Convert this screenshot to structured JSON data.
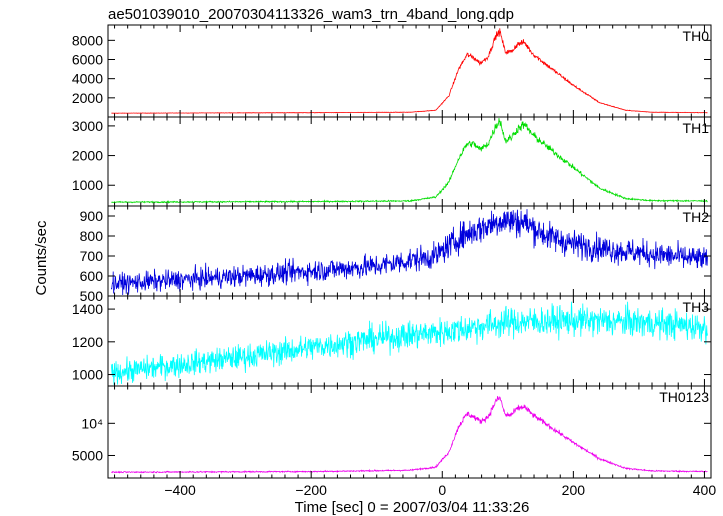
{
  "chart_data": {
    "type": "line",
    "title": "ae501039010_20070304113326_wam3_trn_4band_long.qdp",
    "xlabel": "Time [sec] 0 = 2007/03/04 11:33:26",
    "ylabel": "Counts/sec",
    "xlim": [
      -510,
      410
    ],
    "xticks": [
      -400,
      -200,
      0,
      200,
      400
    ],
    "panels": [
      {
        "name": "TH0",
        "color": "#ff0000",
        "ylim": [
          0,
          9600
        ],
        "yticks": [
          2000,
          4000,
          6000,
          8000
        ],
        "ytick_labels": [
          "2000",
          "4000",
          "6000",
          "8000"
        ],
        "noise": 0.02,
        "keypoints": [
          [
            -505,
            400
          ],
          [
            -200,
            450
          ],
          [
            -50,
            500
          ],
          [
            -10,
            700
          ],
          [
            10,
            2200
          ],
          [
            25,
            5000
          ],
          [
            38,
            6500
          ],
          [
            48,
            6200
          ],
          [
            58,
            5600
          ],
          [
            70,
            6300
          ],
          [
            82,
            8500
          ],
          [
            88,
            8900
          ],
          [
            96,
            6800
          ],
          [
            105,
            6800
          ],
          [
            115,
            7600
          ],
          [
            125,
            7800
          ],
          [
            138,
            6600
          ],
          [
            160,
            5400
          ],
          [
            200,
            3300
          ],
          [
            240,
            1500
          ],
          [
            280,
            700
          ],
          [
            320,
            500
          ],
          [
            405,
            450
          ]
        ]
      },
      {
        "name": "TH1",
        "color": "#00dd00",
        "ylim": [
          300,
          3300
        ],
        "yticks": [
          1000,
          2000,
          3000
        ],
        "ytick_labels": [
          "1000",
          "2000",
          "3000"
        ],
        "noise": 0.025,
        "keypoints": [
          [
            -505,
            430
          ],
          [
            -200,
            450
          ],
          [
            -50,
            470
          ],
          [
            -10,
            600
          ],
          [
            10,
            1100
          ],
          [
            25,
            1900
          ],
          [
            38,
            2400
          ],
          [
            48,
            2400
          ],
          [
            58,
            2200
          ],
          [
            70,
            2400
          ],
          [
            82,
            3000
          ],
          [
            88,
            3200
          ],
          [
            96,
            2500
          ],
          [
            105,
            2600
          ],
          [
            115,
            2900
          ],
          [
            125,
            3050
          ],
          [
            138,
            2700
          ],
          [
            160,
            2300
          ],
          [
            200,
            1600
          ],
          [
            240,
            900
          ],
          [
            280,
            550
          ],
          [
            320,
            480
          ],
          [
            405,
            470
          ]
        ]
      },
      {
        "name": "TH2",
        "color": "#0000dd",
        "ylim": [
          500,
          950
        ],
        "yticks": [
          500,
          600,
          700,
          800,
          900
        ],
        "ytick_labels": [
          "500",
          "600",
          "700",
          "800",
          "900"
        ],
        "noise": 0.045,
        "keypoints": [
          [
            -505,
            560
          ],
          [
            -300,
            600
          ],
          [
            -100,
            650
          ],
          [
            -10,
            700
          ],
          [
            30,
            800
          ],
          [
            60,
            840
          ],
          [
            90,
            880
          ],
          [
            125,
            870
          ],
          [
            160,
            800
          ],
          [
            200,
            760
          ],
          [
            260,
            730
          ],
          [
            320,
            710
          ],
          [
            405,
            680
          ]
        ]
      },
      {
        "name": "TH3",
        "color": "#00ffff",
        "ylim": [
          930,
          1480
        ],
        "yticks": [
          1000,
          1200,
          1400
        ],
        "ytick_labels": [
          "1000",
          "1200",
          "1400"
        ],
        "noise": 0.035,
        "keypoints": [
          [
            -505,
            1010
          ],
          [
            -300,
            1110
          ],
          [
            -100,
            1220
          ],
          [
            0,
            1260
          ],
          [
            100,
            1320
          ],
          [
            200,
            1330
          ],
          [
            300,
            1320
          ],
          [
            405,
            1290
          ]
        ]
      },
      {
        "name": "TH0123",
        "color": "#ee00ee",
        "ylim": [
          1500,
          15800
        ],
        "yticks": [
          5000,
          10000
        ],
        "ytick_labels": [
          "5000",
          "10⁴"
        ],
        "noise": 0.02,
        "keypoints": [
          [
            -505,
            2400
          ],
          [
            -200,
            2500
          ],
          [
            -50,
            2700
          ],
          [
            -10,
            3200
          ],
          [
            10,
            5500
          ],
          [
            25,
            9500
          ],
          [
            38,
            11500
          ],
          [
            48,
            11000
          ],
          [
            58,
            10300
          ],
          [
            70,
            11000
          ],
          [
            82,
            13500
          ],
          [
            88,
            14000
          ],
          [
            96,
            11300
          ],
          [
            105,
            11300
          ],
          [
            115,
            12300
          ],
          [
            125,
            12600
          ],
          [
            138,
            11300
          ],
          [
            160,
            9800
          ],
          [
            200,
            7000
          ],
          [
            240,
            4500
          ],
          [
            280,
            3000
          ],
          [
            320,
            2600
          ],
          [
            405,
            2500
          ]
        ]
      }
    ]
  }
}
